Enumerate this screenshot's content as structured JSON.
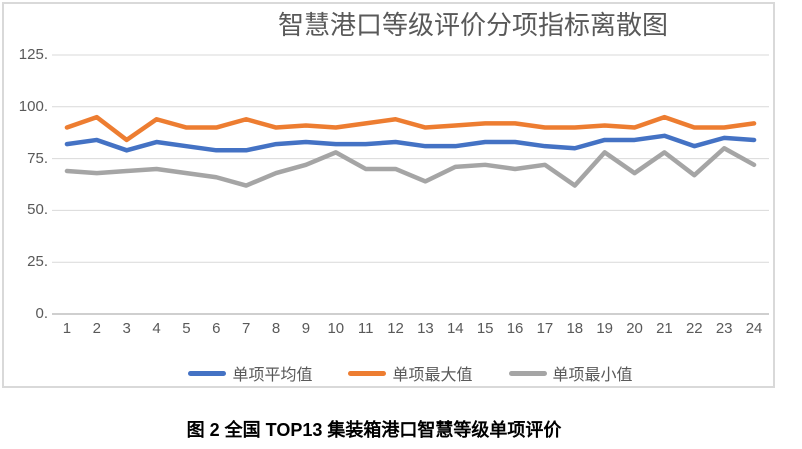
{
  "caption": "图 2 全国 TOP13 集装箱港口智慧等级单项评价",
  "colors": {
    "grid": "#D9D9D9",
    "axis": "#BFBFBF",
    "frame_border": "#D9D9D9",
    "text": "#595959",
    "caption_text": "#000000",
    "series_average": "#4472C4",
    "series_max": "#ED7D31",
    "series_min": "#A5A5A5"
  },
  "chart_data": {
    "type": "line",
    "title": "智慧港口等级评价分项指标离散图",
    "categories": [
      1,
      2,
      3,
      4,
      5,
      6,
      7,
      8,
      9,
      10,
      11,
      12,
      13,
      14,
      15,
      16,
      17,
      18,
      19,
      20,
      21,
      22,
      23,
      24
    ],
    "series": [
      {
        "name": "单项平均值",
        "color": "#4472C4",
        "values": [
          82,
          84,
          79,
          83,
          81,
          79,
          79,
          82,
          83,
          82,
          82,
          83,
          81,
          81,
          83,
          83,
          81,
          80,
          84,
          84,
          86,
          81,
          85,
          84
        ]
      },
      {
        "name": "单项最大值",
        "color": "#ED7D31",
        "values": [
          90,
          95,
          84,
          94,
          90,
          90,
          94,
          90,
          91,
          90,
          92,
          94,
          90,
          91,
          92,
          92,
          90,
          90,
          91,
          90,
          95,
          90,
          90,
          92
        ]
      },
      {
        "name": "单项最小值",
        "color": "#A5A5A5",
        "values": [
          69,
          68,
          69,
          70,
          68,
          66,
          62,
          68,
          72,
          78,
          70,
          70,
          64,
          71,
          72,
          70,
          72,
          62,
          78,
          68,
          78,
          67,
          80,
          72
        ]
      }
    ],
    "xlabel": "",
    "ylabel": "",
    "ylim": [
      0,
      125
    ],
    "yticks": [
      "0.",
      "25.",
      "50.",
      "75.",
      "100.",
      "125."
    ],
    "grid": true,
    "legend_position": "bottom"
  }
}
